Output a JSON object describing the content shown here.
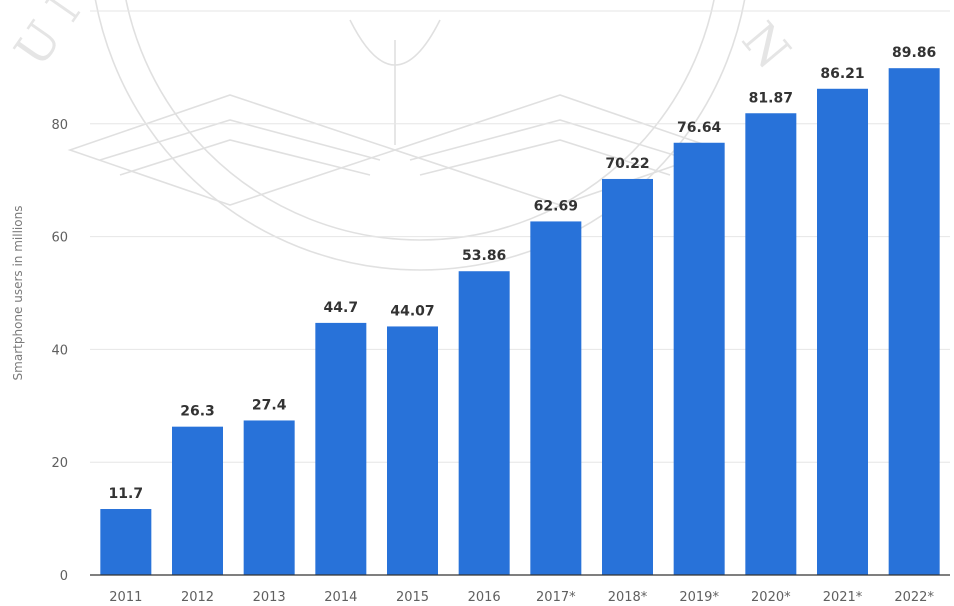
{
  "chart_data": {
    "type": "bar",
    "categories": [
      "2011",
      "2012",
      "2013",
      "2014",
      "2015",
      "2016",
      "2017*",
      "2018*",
      "2019*",
      "2020*",
      "2021*",
      "2022*"
    ],
    "values": [
      11.7,
      26.3,
      27.4,
      44.7,
      44.07,
      53.86,
      62.69,
      70.22,
      76.64,
      81.87,
      86.21,
      89.86
    ],
    "data_labels": [
      "11.7",
      "26.3",
      "27.4",
      "44.7",
      "44.07",
      "53.86",
      "62.69",
      "70.22",
      "76.64",
      "81.87",
      "86.21",
      "89.86"
    ],
    "ylabel": "Smartphone users in millions",
    "xlabel": "",
    "ylim": [
      0,
      100
    ],
    "yticks": [
      0,
      20,
      40,
      60,
      80
    ],
    "grid": true,
    "bar_color": "#2872d9",
    "watermark": "university seal with open book (faint, background)"
  }
}
